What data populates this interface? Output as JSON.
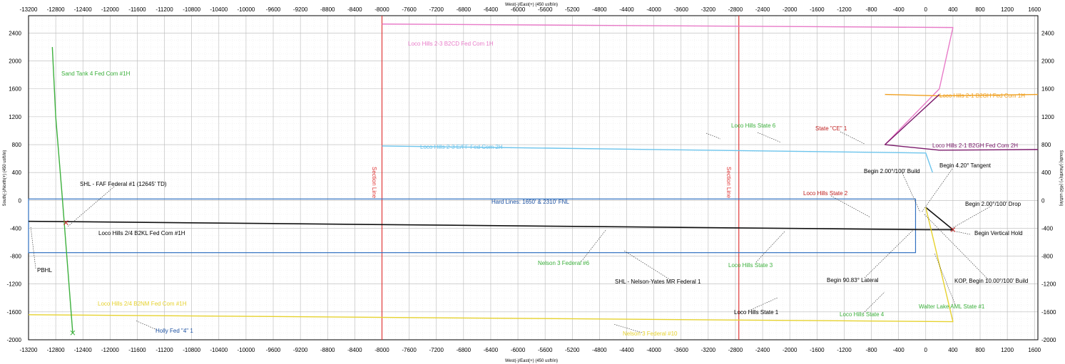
{
  "chart_data": {
    "type": "line",
    "title": "",
    "xlabel": "West(-)/East(+) (450 usft/in)",
    "ylabel": "South(-)/North(+) (450 usft/in)",
    "xlim": [
      -13200,
      1650
    ],
    "ylim": [
      -2000,
      2650
    ],
    "grid": true,
    "x_ticks": [
      -13200,
      -12800,
      -12400,
      -12000,
      -11600,
      -11200,
      -10800,
      -10400,
      -10000,
      -9600,
      -9200,
      -8800,
      -8400,
      -8000,
      -7600,
      -7200,
      -6800,
      -6400,
      -6000,
      -5600,
      -5200,
      -4800,
      -4400,
      -4000,
      -3600,
      -3200,
      -2800,
      -2400,
      -2000,
      -1600,
      -1200,
      -800,
      -400,
      0,
      400,
      800,
      1200,
      1600
    ],
    "x_tick_labels": [
      "-13200",
      "-12800",
      "-12400",
      "-12000",
      "-11600",
      "-11200",
      "-10800",
      "-10400",
      "-10000",
      "-9600",
      "-9200",
      "-8800",
      "-8400",
      "-8000",
      "-7600",
      "-7200",
      "-6800",
      "-6400",
      "-6000",
      "-5600",
      "-5200",
      "-4800",
      "-4400",
      "-4000",
      "-3600",
      "-3200",
      "-2800",
      "-2400",
      "-2000",
      "-1600",
      "-1200",
      "-800",
      "-400",
      "0",
      "400",
      "800",
      "1200",
      "1600"
    ],
    "y_ticks_left": [
      2400,
      2000,
      1600,
      1200,
      800,
      400,
      0,
      -400,
      -800,
      -1200,
      -1600,
      -2000
    ],
    "y_tick_labels_left": [
      "2400",
      "2000",
      "1600",
      "1200",
      "800",
      "400",
      "0",
      "-400",
      "-800",
      "-1200",
      "-1600",
      "-2000"
    ],
    "y_ticks_right": [
      2400,
      2000,
      1600,
      1200,
      800,
      400,
      0,
      -400,
      -800,
      -1200,
      -1600,
      -2000
    ],
    "y_tick_labels_right": [
      "2400",
      "2000",
      "1600",
      "1200",
      "800",
      "400",
      "0",
      "-400",
      "-800",
      "-1200",
      "-1600",
      "-2000"
    ],
    "series": [
      {
        "name": "Loco Hills 2-3 B2CD Fed Com 1H",
        "color": "#e87bc8",
        "points": [
          [
            -8000,
            2530
          ],
          [
            400,
            2480
          ],
          [
            200,
            1600
          ],
          [
            -600,
            800
          ]
        ]
      },
      {
        "name": "Loco Hills 2-1 B2GH Fed Com 1H",
        "color": "#f0a020",
        "points": [
          [
            -600,
            1520
          ],
          [
            200,
            1500
          ],
          [
            1650,
            1520
          ]
        ]
      },
      {
        "name": "Loco Hills 2-1 B2GH Fed Com 2H",
        "color": "#7b1a6b",
        "points": [
          [
            200,
            1520
          ],
          [
            -600,
            800
          ],
          [
            200,
            720
          ],
          [
            1650,
            730
          ]
        ]
      },
      {
        "name": "Loco Hills 2-3 E/FF Fed Com 2H",
        "color": "#6cc4ec",
        "points": [
          [
            -8000,
            780
          ],
          [
            0,
            680
          ],
          [
            100,
            400
          ]
        ]
      },
      {
        "name": "Loco Hills 2/4 B2KL Fed Com #1H",
        "color": "#111111",
        "points": [
          [
            -13200,
            -300
          ],
          [
            0,
            -420
          ],
          [
            400,
            -420
          ],
          [
            0,
            -100
          ]
        ]
      },
      {
        "name": "Loco Hills 2/4 B2NM Fed Com #1H",
        "color": "#e6d22e",
        "points": [
          [
            -13200,
            -1640
          ],
          [
            400,
            -1740
          ],
          [
            0,
            -100
          ]
        ]
      },
      {
        "name": "Sand Tank 4 Fed Com #1H",
        "color": "#3cb03c",
        "points": [
          [
            -12850,
            2200
          ],
          [
            -12800,
            1200
          ],
          [
            -12700,
            0
          ],
          [
            -12550,
            -1900
          ]
        ]
      }
    ],
    "boxes": [
      {
        "name": "Hard Lines: 1650' & 2310' FNL",
        "color": "#3070c0",
        "x": [
          -13200,
          -150
        ],
        "y": [
          -750,
          20
        ]
      }
    ],
    "vertical_lines": [
      {
        "label": "Section Line",
        "x": -8000,
        "color": "#e03838"
      },
      {
        "label": "Section Line",
        "x": -2750,
        "color": "#e03838"
      }
    ],
    "annotations": [
      {
        "text": "Sand Tank 4 Fed Com #1H",
        "color": "#3cb03c"
      },
      {
        "text": "Loco Hills 2-3 B2CD Fed Com 1H",
        "color": "#e87bc8"
      },
      {
        "text": "Loco Hills 2-1 B2GH Fed Com 1H",
        "color": "#f0a020"
      },
      {
        "text": "Loco Hills State 6",
        "color": "#3cb03c"
      },
      {
        "text": "State \"CE\" 1",
        "color": "#c02020"
      },
      {
        "text": "Loco Hills 2-1 B2GH Fed Com 2H",
        "color": "#7b1a6b"
      },
      {
        "text": "Loco Hills 2-3 E/FF Fed Com 2H",
        "color": "#6cc4ec"
      },
      {
        "text": "Begin 2.00°/100' Build",
        "color": "#000000"
      },
      {
        "text": "Begin 4.20° Tangent",
        "color": "#000000"
      },
      {
        "text": "SHL - FAF Federal #1 (12645' TD)",
        "color": "#000000"
      },
      {
        "text": "Loco Hills State 2",
        "color": "#c02020"
      },
      {
        "text": "Hard Lines: 1650' & 2310' FNL",
        "color": "#1a4fa0"
      },
      {
        "text": "Begin 2.00°/100' Drop",
        "color": "#000000"
      },
      {
        "text": "Loco Hills 2/4 B2KL Fed Com #1H",
        "color": "#000000"
      },
      {
        "text": "Begin Vertical Hold",
        "color": "#000000"
      },
      {
        "text": "PBHL",
        "color": "#000000"
      },
      {
        "text": "Nelson 3 Federal #6",
        "color": "#3cb03c"
      },
      {
        "text": "Loco Hills State 3",
        "color": "#3cb03c"
      },
      {
        "text": "SHL - Nelson-Yates MR Federal 1",
        "color": "#000000"
      },
      {
        "text": "Begin 90.83° Lateral",
        "color": "#000000"
      },
      {
        "text": "KOP, Begin 10.00°/100' Build",
        "color": "#000000"
      },
      {
        "text": "Loco Hills 2/4 B2NM Fed Com #1H",
        "color": "#e6d22e"
      },
      {
        "text": "Walter Lake AML State #1",
        "color": "#3cb03c"
      },
      {
        "text": "Loco Hills State 1",
        "color": "#000000"
      },
      {
        "text": "Loco Hills State 4",
        "color": "#3cb03c"
      },
      {
        "text": "Holly Fed \"4\" 1",
        "color": "#1a4fa0"
      },
      {
        "text": "Nelson 3 Federal #10",
        "color": "#e6d22e"
      }
    ]
  }
}
